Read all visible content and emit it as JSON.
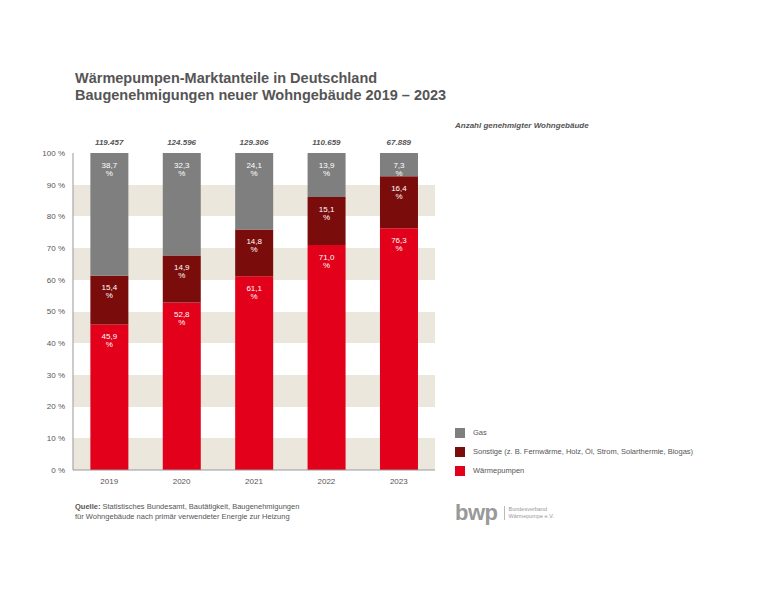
{
  "chart_data": {
    "type": "bar",
    "stacked": true,
    "data_labels": true,
    "grid": true,
    "legend": "right",
    "title": "Wärmepumpen-Marktanteile in Deutschland",
    "subtitle": "Baugenehmigungen neuer Wohngebäude 2019 – 2023",
    "categories": [
      "2019",
      "2020",
      "2021",
      "2022",
      "2023"
    ],
    "series": [
      {
        "name": "Wärmepumpen",
        "color": "#e2001a",
        "values": [
          45.9,
          52.8,
          61.1,
          71.0,
          76.3
        ],
        "value_labels": [
          "45,9 %",
          "52,8 %",
          "61,1 %",
          "71,0 %",
          "76,3 %"
        ]
      },
      {
        "name": "Sonstige (z. B. Fernwärme, Holz, Öl, Strom, Solarthermie, Biogas)",
        "color": "#7b0c0c",
        "values": [
          15.4,
          14.9,
          14.8,
          15.1,
          16.4
        ],
        "value_labels": [
          "15,4 %",
          "14,9 %",
          "14,8 %",
          "15,1 %",
          "16,4 %"
        ]
      },
      {
        "name": "Gas",
        "color": "#7f7f7f",
        "values": [
          38.7,
          32.3,
          24.1,
          13.9,
          7.3
        ],
        "value_labels": [
          "38,7 %",
          "32,3 %",
          "24,1 %",
          "13,9 %",
          "7,3 %"
        ]
      }
    ],
    "ylim": [
      0,
      100
    ],
    "yticks": [
      {
        "value": 0,
        "label": "0 %"
      },
      {
        "value": 10,
        "label": "10 %"
      },
      {
        "value": 20,
        "label": "20 %"
      },
      {
        "value": 30,
        "label": "30 %"
      },
      {
        "value": 40,
        "label": "40 %"
      },
      {
        "value": 50,
        "label": "50 %"
      },
      {
        "value": 60,
        "label": "60 %"
      },
      {
        "value": 70,
        "label": "70 %"
      },
      {
        "value": 80,
        "label": "80 %"
      },
      {
        "value": 90,
        "label": "90 %"
      },
      {
        "value": 100,
        "label": "100 %"
      }
    ],
    "counts": {
      "title": "Anzahl genehmigter Wohngebäude",
      "values": [
        119457,
        124596,
        129306,
        110659,
        67889
      ],
      "value_labels": [
        "119.457",
        "124.596",
        "129.306",
        "110.659",
        "67.889"
      ]
    },
    "source": [
      "Quelle: Statistisches Bundesamt, Bautätigkeit, Baugenehmigungen",
      "für Wohngebäude nach primär verwendeter Energie zur Heizung"
    ],
    "logo": {
      "text": "bwp",
      "name": [
        "Bundesverband",
        "Wärmepumpe e.V."
      ]
    }
  }
}
